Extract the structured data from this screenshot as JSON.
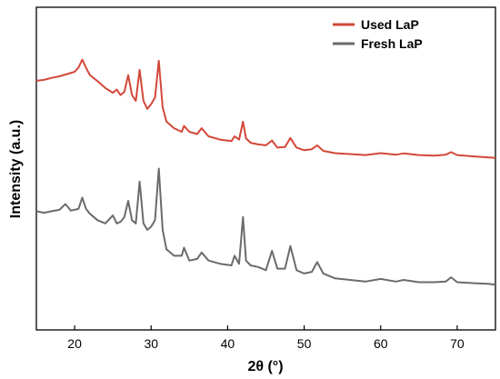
{
  "chart_data": {
    "type": "line",
    "title": "",
    "xlabel": "2θ (°)",
    "ylabel": "Intensity (a.u.)",
    "xlim": [
      15,
      75
    ],
    "xticks": [
      20,
      30,
      40,
      50,
      60,
      70
    ],
    "xtick_labels": [
      "20",
      "30",
      "40",
      "50",
      "60",
      "70"
    ],
    "y_ticks_shown": false,
    "ylim": [
      0,
      1
    ],
    "grid": false,
    "legend_position": "top-right",
    "series": [
      {
        "name": "Used LaP",
        "color": "#d2483a",
        "x": [
          15,
          16,
          17,
          18,
          19,
          20,
          20.5,
          21,
          21.5,
          22,
          23,
          24,
          25,
          25.5,
          26,
          26.5,
          27,
          27.5,
          28,
          28.5,
          29,
          29.5,
          30,
          30.5,
          31,
          31.5,
          32,
          33,
          34,
          34.3,
          35,
          36,
          36.6,
          37.5,
          39,
          40.5,
          40.9,
          41.5,
          42,
          42.4,
          43,
          44,
          45,
          45.8,
          46.5,
          47.5,
          48.2,
          49,
          50,
          51,
          51.7,
          52.5,
          54,
          56,
          58,
          60,
          62,
          63,
          65,
          67,
          68.5,
          69.2,
          70,
          72,
          74,
          75
        ],
        "values": [
          0.772,
          0.775,
          0.781,
          0.786,
          0.793,
          0.8,
          0.813,
          0.838,
          0.812,
          0.79,
          0.771,
          0.75,
          0.735,
          0.745,
          0.728,
          0.738,
          0.79,
          0.728,
          0.71,
          0.806,
          0.71,
          0.685,
          0.7,
          0.72,
          0.834,
          0.69,
          0.646,
          0.625,
          0.614,
          0.632,
          0.614,
          0.607,
          0.625,
          0.6,
          0.59,
          0.585,
          0.6,
          0.59,
          0.645,
          0.594,
          0.58,
          0.575,
          0.572,
          0.587,
          0.565,
          0.567,
          0.595,
          0.565,
          0.557,
          0.56,
          0.572,
          0.555,
          0.548,
          0.545,
          0.542,
          0.548,
          0.543,
          0.547,
          0.542,
          0.54,
          0.543,
          0.551,
          0.542,
          0.538,
          0.535,
          0.533
        ]
      },
      {
        "name": "Fresh LaP",
        "color": "#6b6b6b",
        "x": [
          15,
          16,
          17,
          18,
          18.8,
          19.5,
          20.5,
          21,
          21.5,
          22,
          23,
          24,
          25,
          25.5,
          26,
          26.5,
          27,
          27.5,
          28,
          28.5,
          29,
          29.5,
          30,
          30.5,
          31,
          31.5,
          32,
          33,
          34,
          34.3,
          35,
          36,
          36.6,
          37.5,
          39,
          40.5,
          40.9,
          41.5,
          42,
          42.4,
          43,
          44,
          45,
          45.8,
          46.5,
          47.5,
          48.2,
          49,
          50,
          51,
          51.7,
          52.5,
          54,
          56,
          58,
          60,
          62,
          63,
          65,
          67,
          68.5,
          69.2,
          70,
          72,
          74,
          75
        ],
        "values": [
          0.368,
          0.363,
          0.368,
          0.372,
          0.39,
          0.37,
          0.375,
          0.41,
          0.375,
          0.36,
          0.34,
          0.33,
          0.355,
          0.33,
          0.335,
          0.35,
          0.4,
          0.34,
          0.33,
          0.46,
          0.33,
          0.31,
          0.32,
          0.34,
          0.5,
          0.31,
          0.25,
          0.23,
          0.23,
          0.255,
          0.215,
          0.22,
          0.24,
          0.215,
          0.205,
          0.2,
          0.23,
          0.205,
          0.35,
          0.215,
          0.2,
          0.195,
          0.185,
          0.245,
          0.19,
          0.19,
          0.26,
          0.185,
          0.175,
          0.18,
          0.21,
          0.175,
          0.16,
          0.155,
          0.15,
          0.158,
          0.15,
          0.155,
          0.148,
          0.148,
          0.15,
          0.163,
          0.148,
          0.145,
          0.143,
          0.14
        ]
      }
    ]
  }
}
